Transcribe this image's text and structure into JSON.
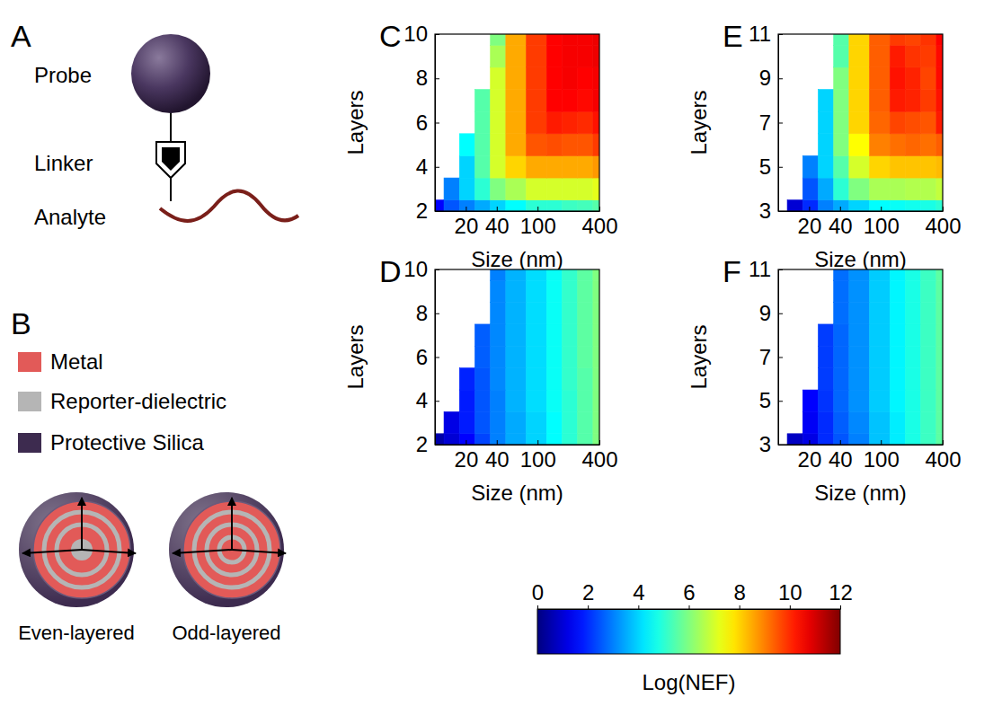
{
  "diagram": {
    "panel_a": {
      "label": "A",
      "items": [
        "Probe",
        "Linker",
        "Analyte"
      ]
    },
    "panel_b": {
      "label": "B",
      "legend": [
        {
          "name": "Metal",
          "color": "#e25a58"
        },
        {
          "name": "Reporter-dielectric",
          "color": "#b5b5b5"
        },
        {
          "name": "Protective Silica",
          "color": "#3d2b4f"
        }
      ],
      "spheres": [
        "Even-layered",
        "Odd-layered"
      ]
    }
  },
  "colorbar": {
    "label": "Log(NEF)",
    "range": [
      0,
      12
    ],
    "ticks": [
      0,
      2,
      4,
      6,
      8,
      10,
      12
    ]
  },
  "chart_data": [
    {
      "type": "contour",
      "panel": "C",
      "xlabel": "Size (nm)",
      "ylabel": "Layers",
      "log": "x",
      "x": [
        10,
        15,
        20,
        30,
        40,
        60,
        100,
        150,
        200,
        300,
        400
      ],
      "y": [
        2,
        3,
        4,
        5,
        6,
        7,
        8,
        9,
        10
      ],
      "xlim": [
        10,
        400
      ],
      "ylim": [
        2,
        10
      ],
      "xticks": [
        20,
        40,
        100,
        400
      ],
      "yticks": [
        2,
        4,
        6,
        8,
        10
      ],
      "cells": [
        [
          1.5,
          2.5,
          3,
          3.5,
          4,
          4.5,
          5,
          5,
          5.2,
          5.3,
          5.5
        ],
        [
          null,
          3,
          4,
          5,
          6,
          6.5,
          7,
          7,
          7,
          7,
          7.2
        ],
        [
          null,
          null,
          4,
          5.5,
          7,
          8,
          8.5,
          8.5,
          8.5,
          8.5,
          8.7
        ],
        [
          null,
          null,
          4.5,
          5.5,
          7,
          8.5,
          9.5,
          9.6,
          9.5,
          9.5,
          9.8
        ],
        [
          null,
          null,
          null,
          5.5,
          7,
          8.5,
          9.8,
          10.2,
          10.1,
          10,
          10.3
        ],
        [
          null,
          null,
          null,
          5.5,
          7,
          8.5,
          9.8,
          10.5,
          10.5,
          10.4,
          10.6
        ],
        [
          null,
          null,
          null,
          null,
          7,
          8.5,
          9.8,
          10.5,
          10.6,
          10.5,
          10.6
        ],
        [
          null,
          null,
          null,
          null,
          6.5,
          8.5,
          9.8,
          10.5,
          10.6,
          10.6,
          10.7
        ],
        [
          null,
          null,
          null,
          null,
          6,
          8.5,
          9.8,
          10.5,
          10.6,
          10.6,
          10.7
        ]
      ]
    },
    {
      "type": "contour",
      "panel": "D",
      "xlabel": "Size (nm)",
      "ylabel": "Layers",
      "log": "x",
      "x": [
        10,
        15,
        20,
        30,
        40,
        60,
        100,
        150,
        200,
        300,
        400
      ],
      "y": [
        2,
        3,
        4,
        5,
        6,
        7,
        8,
        9,
        10
      ],
      "xlim": [
        10,
        400
      ],
      "ylim": [
        2,
        10
      ],
      "xticks": [
        20,
        40,
        100,
        400
      ],
      "yticks": [
        2,
        4,
        6,
        8,
        10
      ],
      "cells": [
        [
          0.5,
          1,
          1.5,
          2.3,
          3,
          3.5,
          4,
          4.5,
          5,
          5.5,
          6
        ],
        [
          null,
          1.2,
          1.8,
          2.5,
          3,
          3.5,
          4,
          4.5,
          5,
          5.5,
          6
        ],
        [
          null,
          null,
          1.8,
          2.5,
          3,
          3.6,
          4.1,
          4.6,
          5,
          5.5,
          6
        ],
        [
          null,
          null,
          1.9,
          2.5,
          3.1,
          3.6,
          4.1,
          4.6,
          5.1,
          5.5,
          6
        ],
        [
          null,
          null,
          null,
          2.6,
          3.1,
          3.6,
          4.1,
          4.6,
          5.1,
          5.6,
          6
        ],
        [
          null,
          null,
          null,
          2.6,
          3.1,
          3.6,
          4.1,
          4.6,
          5.1,
          5.6,
          6
        ],
        [
          null,
          null,
          null,
          null,
          3.1,
          3.6,
          4.1,
          4.6,
          5.1,
          5.6,
          6
        ],
        [
          null,
          null,
          null,
          null,
          3.1,
          3.6,
          4.1,
          4.6,
          5.1,
          5.6,
          6
        ],
        [
          null,
          null,
          null,
          null,
          3,
          3.6,
          4.1,
          4.6,
          5.1,
          5.6,
          6
        ]
      ]
    },
    {
      "type": "contour",
      "panel": "E",
      "xlabel": "Size (nm)",
      "ylabel": "Layers",
      "log": "x",
      "x": [
        10,
        15,
        20,
        30,
        40,
        60,
        100,
        150,
        200,
        300,
        400
      ],
      "y": [
        3,
        4,
        5,
        6,
        7,
        8,
        9,
        10,
        11
      ],
      "xlim": [
        10,
        400
      ],
      "ylim": [
        3,
        11
      ],
      "xticks": [
        20,
        40,
        100,
        400
      ],
      "yticks": [
        3,
        5,
        7,
        9,
        11
      ],
      "cells": [
        [
          null,
          1,
          2,
          3,
          3.5,
          4,
          4.5,
          4.6,
          4.7,
          4.8,
          5
        ],
        [
          null,
          null,
          2.5,
          3.5,
          5,
          6,
          6.5,
          6.5,
          6.6,
          6.6,
          6.8
        ],
        [
          null,
          null,
          3,
          4,
          5.5,
          7,
          8,
          8.2,
          8.2,
          8.2,
          8.3
        ],
        [
          null,
          null,
          null,
          4,
          6,
          7.5,
          9,
          9.2,
          9.3,
          9.2,
          9.4
        ],
        [
          null,
          null,
          null,
          4,
          6,
          8,
          9.3,
          9.7,
          9.6,
          9.5,
          10.2
        ],
        [
          null,
          null,
          null,
          4,
          6,
          8,
          9.4,
          10.2,
          10.1,
          9.8,
          10.3
        ],
        [
          null,
          null,
          null,
          null,
          6,
          8,
          9.4,
          10.3,
          10.1,
          9.7,
          10.4
        ],
        [
          null,
          null,
          null,
          null,
          5.5,
          8,
          9.4,
          10.2,
          9.9,
          9.8,
          10.4
        ],
        [
          null,
          null,
          null,
          null,
          5.5,
          8,
          9.4,
          9.8,
          9.7,
          9.9,
          10.5
        ]
      ]
    },
    {
      "type": "contour",
      "panel": "F",
      "xlabel": "Size (nm)",
      "ylabel": "Layers",
      "log": "x",
      "x": [
        10,
        15,
        20,
        30,
        40,
        60,
        100,
        150,
        200,
        300,
        400
      ],
      "y": [
        3,
        4,
        5,
        6,
        7,
        8,
        9,
        10,
        11
      ],
      "xlim": [
        10,
        400
      ],
      "ylim": [
        3,
        11
      ],
      "xticks": [
        20,
        40,
        100,
        400
      ],
      "yticks": [
        3,
        5,
        7,
        9,
        11
      ],
      "cells": [
        [
          null,
          0.8,
          1.2,
          2,
          2.5,
          3,
          3.8,
          4.3,
          4.8,
          5.2,
          5.6
        ],
        [
          null,
          null,
          1.4,
          2,
          2.6,
          3.1,
          3.8,
          4.3,
          4.8,
          5.2,
          5.6
        ],
        [
          null,
          null,
          1.5,
          2.1,
          2.7,
          3.2,
          3.9,
          4.4,
          4.8,
          5.2,
          5.6
        ],
        [
          null,
          null,
          null,
          2.2,
          2.7,
          3.2,
          3.9,
          4.4,
          4.8,
          5.2,
          5.6
        ],
        [
          null,
          null,
          null,
          2.2,
          2.7,
          3.2,
          3.9,
          4.4,
          4.8,
          5.2,
          5.6
        ],
        [
          null,
          null,
          null,
          2.2,
          2.7,
          3.2,
          3.9,
          4.4,
          4.8,
          5.2,
          5.6
        ],
        [
          null,
          null,
          null,
          null,
          2.8,
          3.2,
          3.9,
          4.4,
          4.8,
          5.2,
          5.6
        ],
        [
          null,
          null,
          null,
          null,
          2.8,
          3.2,
          3.9,
          4.4,
          4.8,
          5.2,
          5.6
        ],
        [
          null,
          null,
          null,
          null,
          2.8,
          3.2,
          3.9,
          4.4,
          4.8,
          5.2,
          5.6
        ]
      ]
    }
  ]
}
